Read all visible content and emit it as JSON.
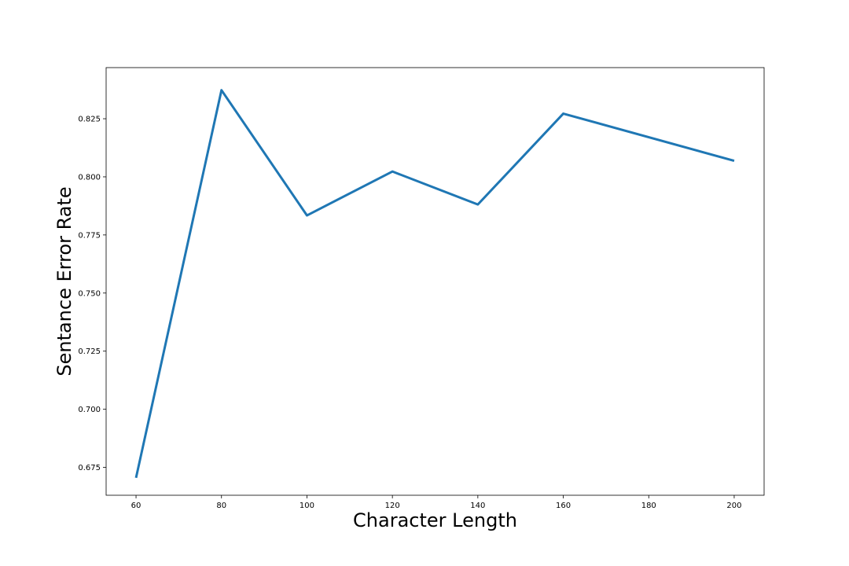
{
  "chart_data": {
    "type": "line",
    "title": "",
    "xlabel": "Character Length",
    "ylabel": "Sentance Error Rate",
    "x": [
      60,
      80,
      100,
      120,
      140,
      160,
      200
    ],
    "series": [
      {
        "values": [
          0.6705,
          0.8373,
          0.7834,
          0.8023,
          0.7881,
          0.8272,
          0.8069
        ],
        "color": "#1f77b4"
      }
    ],
    "xlim": [
      53,
      207
    ],
    "ylim": [
      0.663,
      0.847
    ],
    "xticks": [
      60,
      80,
      100,
      120,
      140,
      160,
      180,
      200
    ],
    "xtick_labels": [
      "60",
      "80",
      "100",
      "120",
      "140",
      "160",
      "180",
      "200"
    ],
    "yticks": [
      0.675,
      0.7,
      0.725,
      0.75,
      0.775,
      0.8,
      0.825
    ],
    "ytick_labels": [
      "0.675",
      "0.700",
      "0.725",
      "0.750",
      "0.775",
      "0.800",
      "0.825"
    ],
    "grid": false,
    "legend": false
  }
}
